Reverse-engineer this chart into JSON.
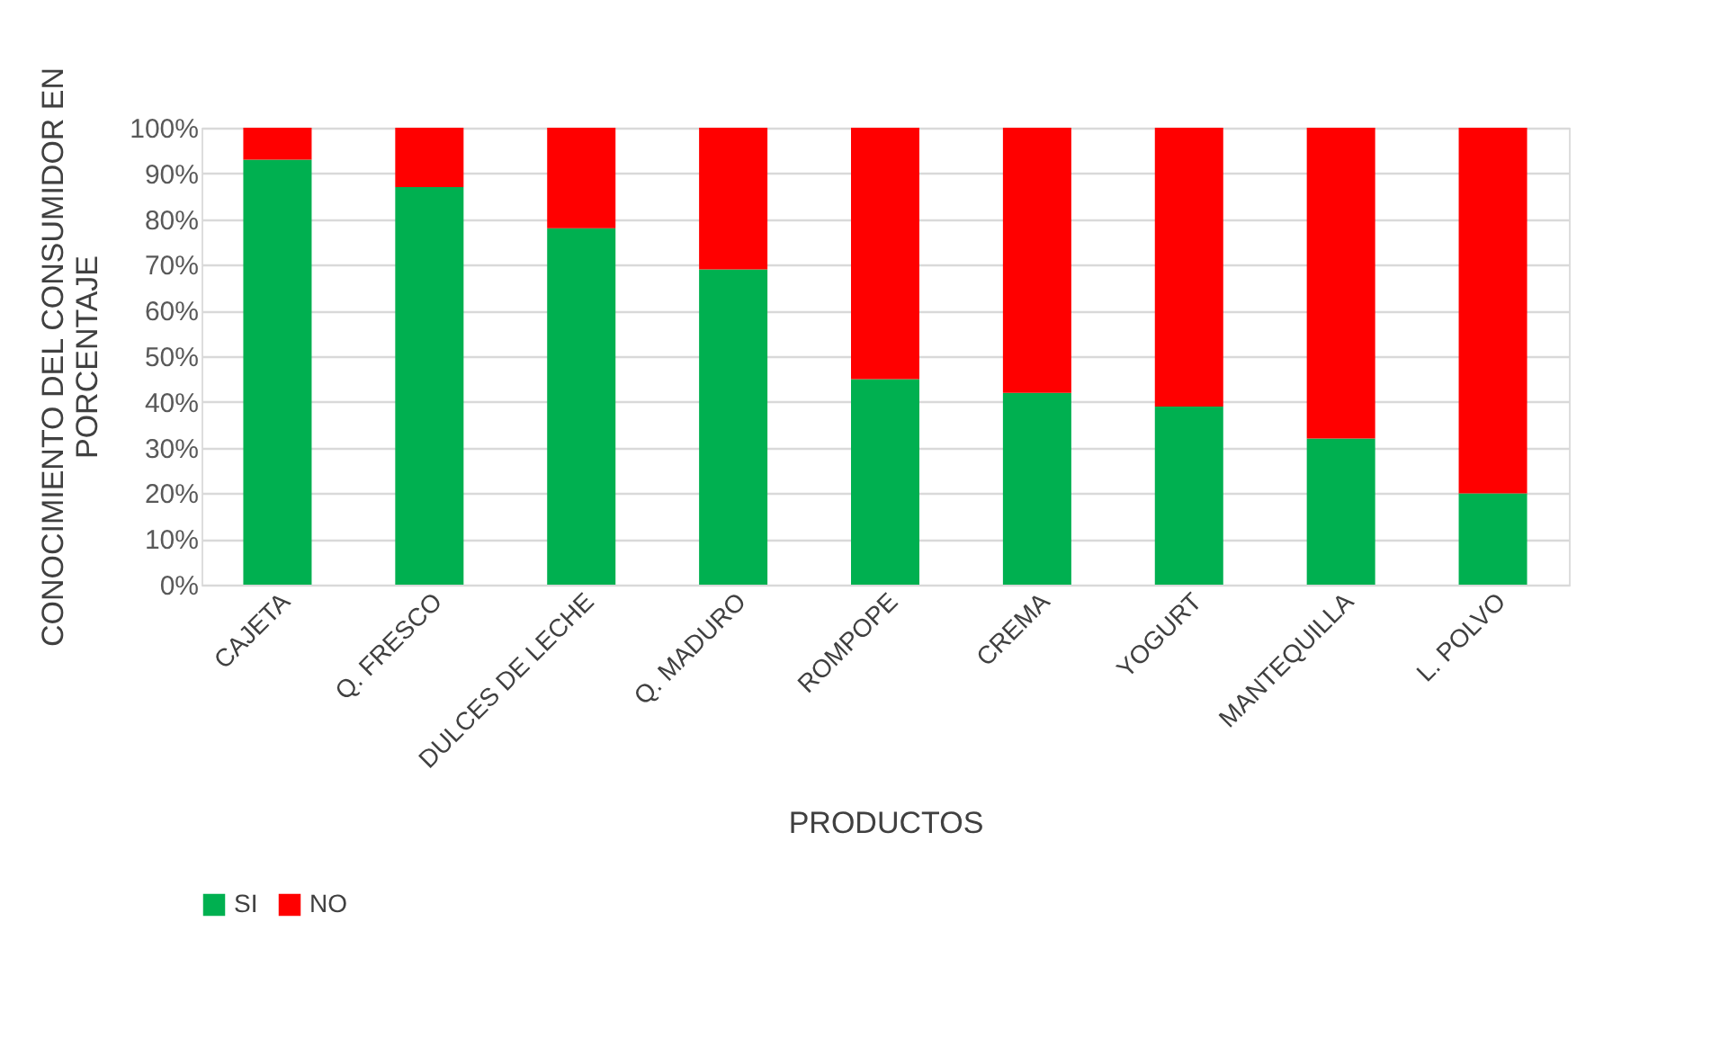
{
  "chart_data": {
    "type": "bar",
    "stacked": true,
    "xlabel": "PRODUCTOS",
    "ylabel": "CONOCIMIENTO DEL CONSUMIDOR EN\nPORCENTAJE",
    "categories": [
      "CAJETA",
      "Q. FRESCO",
      "DULCES DE LECHE",
      "Q. MADURO",
      "ROMPOPE",
      "CREMA",
      "YOGURT",
      "MANTEQUILLA",
      "L. POLVO"
    ],
    "series": [
      {
        "name": "SI",
        "color": "#00b050",
        "values": [
          93,
          87,
          78,
          69,
          45,
          42,
          39,
          32,
          20
        ]
      },
      {
        "name": "NO",
        "color": "#ff0000",
        "values": [
          7,
          13,
          22,
          31,
          55,
          58,
          61,
          68,
          80
        ]
      }
    ],
    "ylim": [
      0,
      100
    ],
    "yticks": [
      {
        "value": 0,
        "label": "0%"
      },
      {
        "value": 10,
        "label": "10%"
      },
      {
        "value": 20,
        "label": "20%"
      },
      {
        "value": 30,
        "label": "30%"
      },
      {
        "value": 40,
        "label": "40%"
      },
      {
        "value": 50,
        "label": "50%"
      },
      {
        "value": 60,
        "label": "60%"
      },
      {
        "value": 70,
        "label": "70%"
      },
      {
        "value": 80,
        "label": "80%"
      },
      {
        "value": 90,
        "label": "90%"
      },
      {
        "value": 100,
        "label": "100%"
      }
    ],
    "grid": "y",
    "legend": "bottom"
  }
}
